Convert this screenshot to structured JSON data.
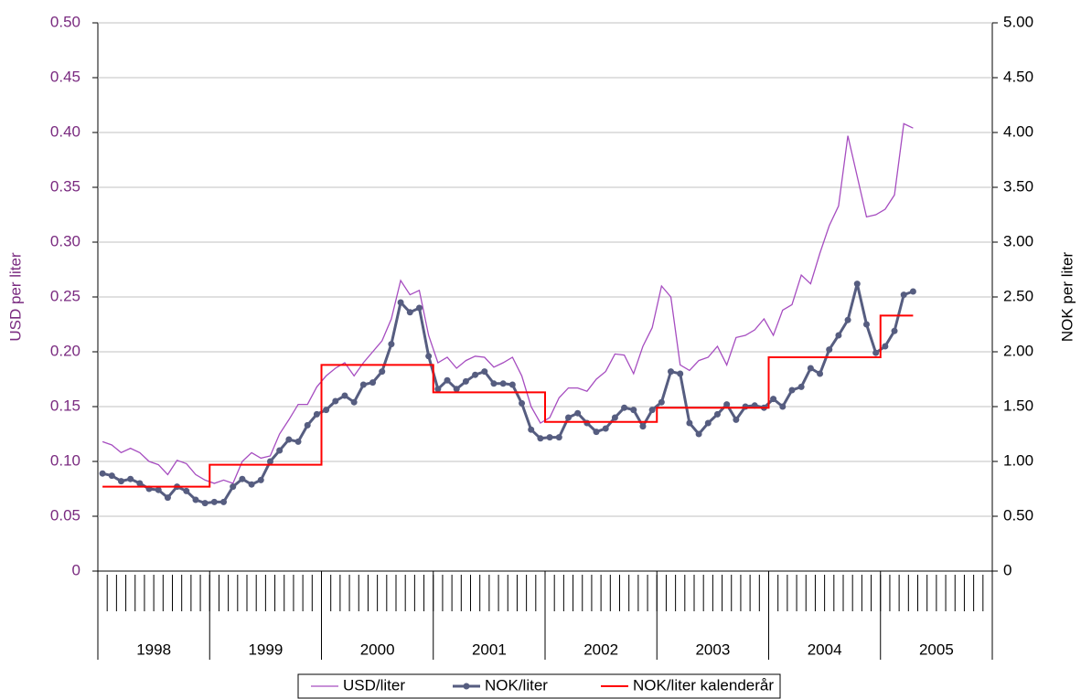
{
  "chart_data": {
    "type": "line",
    "y_label": "USD per liter",
    "y2_label": "NOK per liter",
    "categories": [
      null,
      null,
      null,
      null,
      null,
      null,
      null,
      null,
      null,
      null,
      null,
      null,
      null,
      null,
      null,
      null,
      null,
      null,
      null,
      null,
      null,
      null,
      null,
      null,
      null,
      null,
      null,
      null,
      null,
      null,
      null,
      null,
      null,
      null,
      null,
      null,
      null,
      null,
      null,
      null,
      null,
      null,
      null,
      null,
      null,
      null,
      null,
      null,
      null,
      null,
      null,
      null,
      null,
      null,
      null,
      null,
      null,
      null,
      null,
      null,
      null,
      null,
      null,
      null,
      null,
      null,
      null,
      null,
      null,
      null,
      null,
      null,
      null,
      null,
      null,
      null,
      null,
      null,
      null,
      null,
      null,
      null,
      null,
      null,
      null,
      null,
      null,
      null,
      null,
      null,
      null,
      null,
      null,
      null,
      null,
      null
    ],
    "year_labels": [
      "1998",
      "1999",
      "2000",
      "2001",
      "2002",
      "2003",
      "2004",
      "2005"
    ],
    "ylim": [
      0,
      0.5
    ],
    "yticks": [
      0,
      0.05,
      {
        "value": 0.1,
        "label": "0.10"
      },
      0.15,
      {
        "value": 0.2,
        "label": "0.20"
      },
      0.25,
      {
        "value": 0.3,
        "label": "0.30"
      },
      0.35,
      {
        "value": 0.4,
        "label": "0.40"
      },
      0.45,
      {
        "value": 0.5,
        "label": "0.50"
      }
    ],
    "y2lim": [
      0,
      5
    ],
    "y2ticks": [
      0,
      {
        "value": 0.5,
        "label": "0.50"
      },
      {
        "value": 1,
        "label": "1.00"
      },
      {
        "value": 1.5,
        "label": "1.50"
      },
      {
        "value": 2,
        "label": "2.00"
      },
      {
        "value": 2.5,
        "label": "2.50"
      },
      {
        "value": 3,
        "label": "3.00"
      },
      {
        "value": 3.5,
        "label": "3.50"
      },
      {
        "value": 4,
        "label": "4.00"
      },
      {
        "value": 4.5,
        "label": "4.50"
      },
      {
        "value": 5,
        "label": "5.00"
      }
    ],
    "grid": true,
    "legend": "bottom",
    "series": [
      {
        "name": "USD/liter",
        "color": "#a64dc0",
        "axis": "y",
        "values": [
          0.118,
          0.115,
          0.108,
          0.112,
          0.108,
          0.1,
          0.097,
          0.088,
          0.101,
          0.098,
          0.088,
          0.083,
          0.08,
          0.083,
          0.08,
          0.1,
          0.108,
          0.103,
          0.105,
          0.125,
          0.138,
          0.152,
          0.152,
          0.168,
          0.178,
          0.185,
          0.19,
          0.178,
          0.19,
          0.2,
          0.21,
          0.23,
          0.265,
          0.252,
          0.256,
          0.215,
          0.19,
          0.195,
          0.185,
          0.192,
          0.196,
          0.195,
          0.186,
          0.19,
          0.195,
          0.178,
          0.15,
          0.135,
          0.14,
          0.158,
          0.167,
          0.167,
          0.164,
          0.175,
          0.182,
          0.198,
          0.197,
          0.18,
          0.205,
          0.222,
          0.26,
          0.25,
          0.188,
          0.183,
          0.192,
          0.195,
          0.205,
          0.188,
          0.213,
          0.215,
          0.22,
          0.23,
          0.215,
          0.238,
          0.243,
          0.27,
          0.262,
          0.29,
          0.315,
          0.333,
          0.397,
          0.36,
          0.323,
          0.325,
          0.33,
          0.343,
          0.408,
          0.404,
          null,
          null,
          null,
          null,
          null,
          null,
          null,
          null
        ]
      },
      {
        "name": "NOK/liter",
        "color": "#565d80",
        "axis": "y2",
        "marker": "circle",
        "values": [
          0.89,
          0.87,
          0.82,
          0.84,
          0.8,
          0.75,
          0.74,
          0.67,
          0.77,
          0.73,
          0.65,
          0.62,
          0.63,
          0.63,
          0.77,
          0.84,
          0.79,
          0.83,
          1.0,
          1.1,
          1.2,
          1.18,
          1.33,
          1.43,
          1.47,
          1.55,
          1.6,
          1.54,
          1.7,
          1.72,
          1.82,
          2.07,
          2.45,
          2.36,
          2.4,
          1.96,
          1.66,
          1.74,
          1.66,
          1.73,
          1.79,
          1.82,
          1.71,
          1.71,
          1.7,
          1.53,
          1.29,
          1.21,
          1.22,
          1.22,
          1.4,
          1.44,
          1.35,
          1.27,
          1.3,
          1.4,
          1.49,
          1.47,
          1.32,
          1.47,
          1.54,
          1.82,
          1.8,
          1.35,
          1.25,
          1.35,
          1.43,
          1.52,
          1.38,
          1.5,
          1.51,
          1.49,
          1.57,
          1.5,
          1.65,
          1.68,
          1.85,
          1.8,
          2.02,
          2.15,
          2.29,
          2.62,
          2.25,
          1.99,
          2.05,
          2.19,
          2.52,
          2.55,
          null,
          null,
          null,
          null,
          null,
          null,
          null,
          null
        ]
      },
      {
        "name": "NOK/liter kalenderår",
        "color": "#ff0000",
        "axis": "y2",
        "step": true,
        "values": [
          0.77,
          0.77,
          0.77,
          0.77,
          0.77,
          0.77,
          0.77,
          0.77,
          0.77,
          0.77,
          0.77,
          0.77,
          0.97,
          0.97,
          0.97,
          0.97,
          0.97,
          0.97,
          0.97,
          0.97,
          0.97,
          0.97,
          0.97,
          0.97,
          1.88,
          1.88,
          1.88,
          1.88,
          1.88,
          1.88,
          1.88,
          1.88,
          1.88,
          1.88,
          1.88,
          1.88,
          1.63,
          1.63,
          1.63,
          1.63,
          1.63,
          1.63,
          1.63,
          1.63,
          1.63,
          1.63,
          1.63,
          1.63,
          1.36,
          1.36,
          1.36,
          1.36,
          1.36,
          1.36,
          1.36,
          1.36,
          1.36,
          1.36,
          1.36,
          1.36,
          1.49,
          1.49,
          1.49,
          1.49,
          1.49,
          1.49,
          1.49,
          1.49,
          1.49,
          1.49,
          1.49,
          1.49,
          1.95,
          1.95,
          1.95,
          1.95,
          1.95,
          1.95,
          1.95,
          1.95,
          1.95,
          1.95,
          1.95,
          1.95,
          2.33,
          2.33,
          2.33,
          2.33,
          null,
          null,
          null,
          null,
          null,
          null,
          null,
          null
        ]
      }
    ]
  }
}
